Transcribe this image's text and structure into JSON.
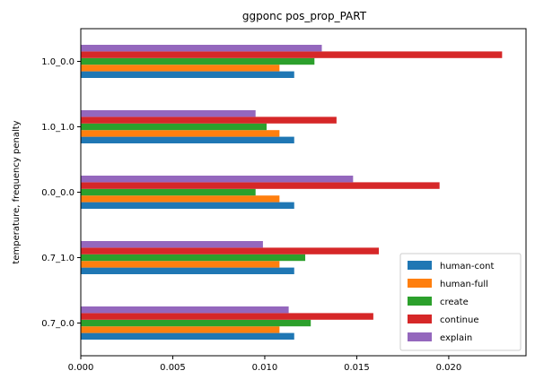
{
  "chart_data": {
    "type": "bar",
    "orientation": "horizontal",
    "title": "ggponc pos_prop_PART",
    "xlabel": "",
    "ylabel": "temperature, frequency penalty",
    "categories": [
      "0.7_0.0",
      "0.7_1.0",
      "0.0_0.0",
      "1.0_1.0",
      "1.0_0.0"
    ],
    "xlim": [
      0,
      0.0242
    ],
    "xticks": [
      "0.000",
      "0.005",
      "0.010",
      "0.015",
      "0.020"
    ],
    "xtick_values": [
      0,
      0.005,
      0.01,
      0.015,
      0.02
    ],
    "grid": false,
    "legend_position": "bottom-right",
    "series": [
      {
        "name": "human-cont",
        "color": "#1f77b4",
        "values": [
          0.0116,
          0.0116,
          0.0116,
          0.0116,
          0.0116
        ]
      },
      {
        "name": "human-full",
        "color": "#ff7f0e",
        "values": [
          0.0108,
          0.0108,
          0.0108,
          0.0108,
          0.0108
        ]
      },
      {
        "name": "create",
        "color": "#2ca02c",
        "values": [
          0.0125,
          0.0122,
          0.0095,
          0.0101,
          0.0127
        ]
      },
      {
        "name": "continue",
        "color": "#d62728",
        "values": [
          0.0159,
          0.0162,
          0.0195,
          0.0139,
          0.0229
        ]
      },
      {
        "name": "explain",
        "color": "#9467bd",
        "values": [
          0.0113,
          0.0099,
          0.0148,
          0.0095,
          0.0131
        ]
      }
    ]
  }
}
